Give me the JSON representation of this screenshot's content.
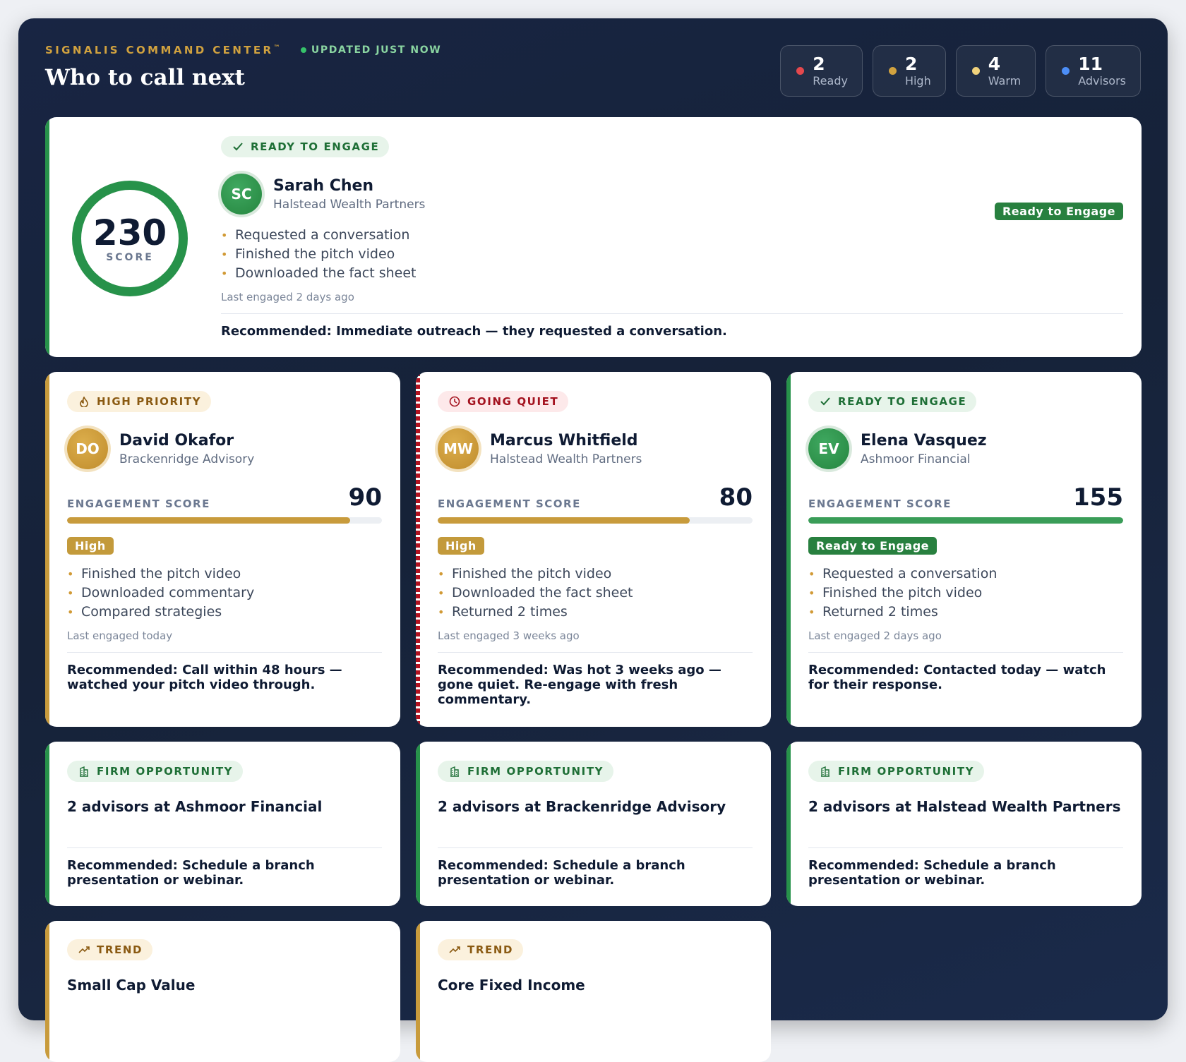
{
  "header": {
    "brand": "SIGNALIS COMMAND CENTER",
    "trademark": "™",
    "updated": "UPDATED JUST NOW",
    "title": "Who to call next"
  },
  "stats": [
    {
      "num": "2",
      "label": "Ready",
      "color": "#e5484d"
    },
    {
      "num": "2",
      "label": "High",
      "color": "#d1a23f"
    },
    {
      "num": "4",
      "label": "Warm",
      "color": "#f1d27c"
    },
    {
      "num": "11",
      "label": "Advisors",
      "color": "#4c8ef7"
    }
  ],
  "hero": {
    "tag": "READY TO ENGAGE",
    "score": 230,
    "score_caption": "SCORE",
    "initials": "SC",
    "name": "Sarah Chen",
    "firm": "Halstead Wealth Partners",
    "status": "Ready to Engage",
    "activities": [
      "Requested a conversation",
      "Finished the pitch video",
      "Downloaded the fact sheet"
    ],
    "last": "Last engaged 2 days ago",
    "rec": "Recommended: Immediate outreach — they requested a conversation."
  },
  "advisors": [
    {
      "tag": "HIGH PRIORITY",
      "initials": "DO",
      "name": "David Okafor",
      "firm": "Brackenridge Advisory",
      "score_label": "ENGAGEMENT SCORE",
      "score": "90",
      "progress": 0.9,
      "status": "High",
      "activities": [
        "Finished the pitch video",
        "Downloaded commentary",
        "Compared strategies"
      ],
      "last": "Last engaged today",
      "rec": "Recommended: Call within 48 hours — watched your pitch video through."
    },
    {
      "tag": "GOING QUIET",
      "initials": "MW",
      "name": "Marcus Whitfield",
      "firm": "Halstead Wealth Partners",
      "score_label": "ENGAGEMENT SCORE",
      "score": "80",
      "progress": 0.8,
      "status": "High",
      "activities": [
        "Finished the pitch video",
        "Downloaded the fact sheet",
        "Returned 2 times"
      ],
      "last": "Last engaged 3 weeks ago",
      "rec": "Recommended: Was hot 3 weeks ago — gone quiet. Re-engage with fresh commentary."
    },
    {
      "tag": "READY TO ENGAGE",
      "initials": "EV",
      "name": "Elena Vasquez",
      "firm": "Ashmoor Financial",
      "score_label": "ENGAGEMENT SCORE",
      "score": "155",
      "progress": 1.0,
      "status": "Ready to Engage",
      "activities": [
        "Requested a conversation",
        "Finished the pitch video",
        "Returned 2 times"
      ],
      "last": "Last engaged 2 days ago",
      "rec": "Recommended: Contacted today — watch for their response."
    }
  ],
  "firms": [
    {
      "tag": "FIRM OPPORTUNITY",
      "title": "2 advisors at Ashmoor Financial",
      "rec": "Recommended: Schedule a branch presentation or webinar."
    },
    {
      "tag": "FIRM OPPORTUNITY",
      "title": "2 advisors at Brackenridge Advisory",
      "rec": "Recommended: Schedule a branch presentation or webinar."
    },
    {
      "tag": "FIRM OPPORTUNITY",
      "title": "2 advisors at Halstead Wealth Partners",
      "rec": "Recommended: Schedule a branch presentation or webinar."
    }
  ],
  "trends": [
    {
      "tag": "TREND",
      "title": "Small Cap Value"
    },
    {
      "tag": "TREND",
      "title": "Core Fixed Income"
    }
  ],
  "colors": {
    "green": "#27924a",
    "gold": "#c89b3c",
    "red": "#b3121f"
  }
}
